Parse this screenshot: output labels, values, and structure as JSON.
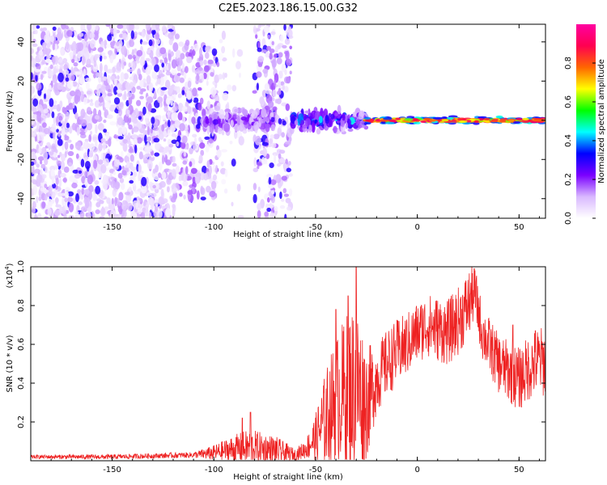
{
  "figure_title": "C2E5.2023.186.15.00.G32",
  "chart_data": [
    {
      "type": "heatmap",
      "xlabel": "Height of straight line (km)",
      "ylabel": "Frequency (Hz)",
      "xlim": [
        -190,
        63
      ],
      "ylim": [
        -50,
        49
      ],
      "xticks": [
        -150,
        -100,
        -50,
        0,
        50
      ],
      "yticks": [
        -40,
        -20,
        0,
        20,
        40
      ],
      "colorbar": {
        "label": "Normalized spectral amplitude",
        "range": [
          0,
          1
        ],
        "ticks": [
          "0.0",
          "0.2",
          "0.4",
          "0.6",
          "0.8"
        ],
        "tick_values": [
          0.0,
          0.2,
          0.4,
          0.6,
          0.8
        ],
        "colors": [
          "#ffffff",
          "#d9b8ff",
          "#7a00ff",
          "#0000ff",
          "#00ffff",
          "#00ff00",
          "#ffff00",
          "#ff6600",
          "#ff0050",
          "#ff00a0"
        ]
      },
      "regions": [
        {
          "x_range": [
            -190,
            -118
          ],
          "freq_range": [
            -50,
            49
          ],
          "amplitude": 0.08,
          "density": "dense"
        },
        {
          "x_range": [
            -118,
            -98
          ],
          "freq_range": [
            -40,
            40
          ],
          "amplitude": 0.1,
          "density": "medium"
        },
        {
          "x_range": [
            -98,
            -86
          ],
          "freq_range": [
            -50,
            49
          ],
          "amplitude": 0.05,
          "density": "sparse"
        },
        {
          "x_range": [
            -80,
            -62
          ],
          "freq_range": [
            -50,
            49
          ],
          "amplitude": 0.1,
          "density": "medium"
        },
        {
          "x_range": [
            -105,
            -70
          ],
          "freq_range": [
            -8,
            8
          ],
          "amplitude": 0.25,
          "density": "band"
        },
        {
          "x_range": [
            -62,
            -25
          ],
          "freq_range": [
            -7,
            7
          ],
          "amplitude": 0.4,
          "density": "band"
        },
        {
          "x_range": [
            -25,
            63
          ],
          "freq_range": [
            -2,
            2
          ],
          "amplitude": 0.85,
          "density": "line"
        }
      ]
    },
    {
      "type": "line",
      "xlabel": "Height of straight line (km)",
      "ylabel": "SNR (10 * v/v)",
      "yscale_label": "(x10",
      "yscale_exp": "4",
      "yscale_close": ")",
      "xlim": [
        -190,
        63
      ],
      "ylim": [
        0,
        1.0
      ],
      "xticks": [
        -150,
        -100,
        -50,
        0,
        50
      ],
      "yticks": [
        "0.2",
        "0.4",
        "0.6",
        "0.8",
        "1.0"
      ],
      "ytick_values": [
        0.2,
        0.4,
        0.6,
        0.8,
        1.0
      ],
      "color": "#ee2222",
      "trend": {
        "x": [
          -190,
          -150,
          -110,
          -100,
          -90,
          -80,
          -70,
          -60,
          -55,
          -50,
          -45,
          -40,
          -35,
          -30,
          -25,
          -20,
          -15,
          -10,
          -5,
          0,
          5,
          10,
          15,
          20,
          25,
          28,
          32,
          35,
          40,
          45,
          50,
          55,
          60,
          63
        ],
        "y": [
          0.02,
          0.02,
          0.03,
          0.04,
          0.06,
          0.07,
          0.05,
          0.03,
          0.06,
          0.12,
          0.22,
          0.32,
          0.36,
          0.38,
          0.3,
          0.42,
          0.5,
          0.56,
          0.6,
          0.66,
          0.7,
          0.68,
          0.66,
          0.72,
          0.8,
          0.88,
          0.66,
          0.6,
          0.5,
          0.46,
          0.42,
          0.48,
          0.52,
          0.5
        ]
      },
      "noise_amp": {
        "x": [
          -190,
          -110,
          -100,
          -85,
          -70,
          -60,
          -55,
          -50,
          -45,
          -40,
          -35,
          -30,
          -25,
          -20,
          0,
          25,
          30,
          45,
          63
        ],
        "y": [
          0.01,
          0.015,
          0.04,
          0.09,
          0.08,
          0.03,
          0.05,
          0.12,
          0.25,
          0.32,
          0.4,
          0.45,
          0.3,
          0.18,
          0.16,
          0.18,
          0.14,
          0.16,
          0.18
        ]
      },
      "spikes": [
        {
          "x": -30,
          "y": 1.0
        },
        {
          "x": -34,
          "y": 0.85
        },
        {
          "x": -40,
          "y": 0.78
        },
        {
          "x": 28,
          "y": 0.99
        },
        {
          "x": -82,
          "y": 0.25
        },
        {
          "x": -86,
          "y": 0.22
        },
        {
          "x": 47,
          "y": 0.7
        },
        {
          "x": 58,
          "y": 0.67
        }
      ]
    }
  ]
}
